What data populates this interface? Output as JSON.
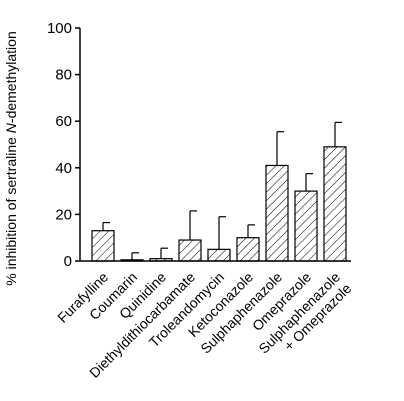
{
  "chart_data": {
    "type": "bar",
    "title": "",
    "xlabel": "",
    "ylabel_prefix": "% inhibition of sertraline ",
    "ylabel_italic": "N",
    "ylabel_suffix": "-demethylation",
    "ylim": [
      0,
      100
    ],
    "yticks": [
      "0",
      "20",
      "40",
      "60",
      "80",
      "100"
    ],
    "categories": [
      "Furafylline",
      "Coumarin",
      "Quinidine",
      "Diethyldithiocarbamate",
      "Troleandomycin",
      "Ketoconazole",
      "Sulphaphenazole",
      "Omeprazole",
      [
        "Sulphaphenazole",
        "+ Omeprazole"
      ]
    ],
    "values": [
      13,
      0.5,
      1,
      9,
      5,
      10,
      41,
      30,
      49
    ],
    "errors": [
      3.5,
      3,
      4.5,
      12.5,
      14,
      5.5,
      14.5,
      7.5,
      10.5
    ],
    "bar_fill": "hatched",
    "colors": {
      "stroke": "#000000",
      "background": "#ffffff"
    },
    "grid": false,
    "legend": "none"
  }
}
